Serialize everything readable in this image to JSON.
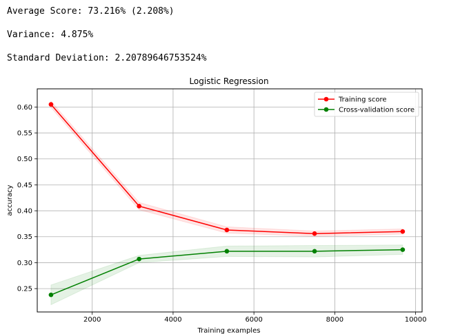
{
  "output": {
    "lines": [
      "Average Score: 73.216% (2.208%)",
      "Variance: 4.875%",
      "Standard Deviation: 2.20789646753524%"
    ]
  },
  "chart_data": {
    "type": "line",
    "title": "Logistic Regression",
    "xlabel": "Training examples",
    "ylabel": "accuracy",
    "xlim": [
      640,
      10160
    ],
    "ylim": [
      0.205,
      0.635
    ],
    "xticks": [
      2000,
      4000,
      6000,
      8000,
      10000
    ],
    "yticks": [
      0.25,
      0.3,
      0.35,
      0.4,
      0.45,
      0.5,
      0.55,
      0.6
    ],
    "grid": true,
    "legend_position": "top-right",
    "x": [
      980,
      3160,
      5330,
      7500,
      9680
    ],
    "series": [
      {
        "name": "Training score",
        "color": "#ff0000",
        "values": [
          0.605,
          0.409,
          0.363,
          0.356,
          0.36
        ],
        "band": [
          0.006,
          0.007,
          0.006,
          0.005,
          0.005
        ]
      },
      {
        "name": "Cross-validation score",
        "color": "#008000",
        "values": [
          0.238,
          0.307,
          0.322,
          0.322,
          0.325
        ],
        "band": [
          0.019,
          0.007,
          0.01,
          0.011,
          0.009
        ]
      }
    ]
  }
}
